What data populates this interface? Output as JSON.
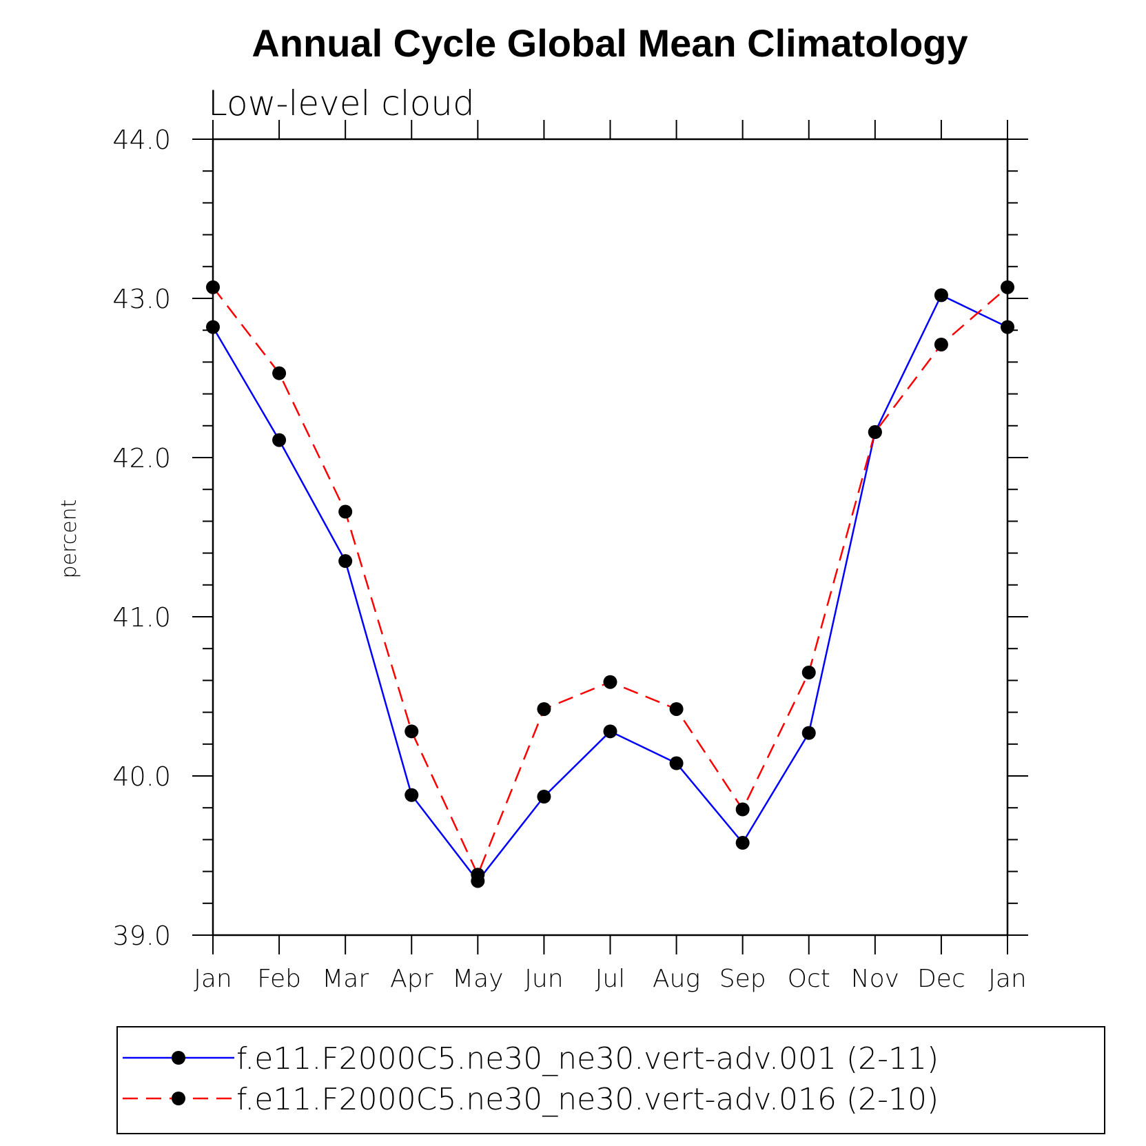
{
  "chart_data": {
    "type": "line",
    "title": "Annual Cycle Global Mean Climatology",
    "subtitle": "Low-level cloud",
    "ylabel": "percent",
    "xlabel": "",
    "ylim": [
      39.0,
      44.0
    ],
    "yticks": [
      "39.0",
      "40.0",
      "41.0",
      "42.0",
      "43.0",
      "44.0"
    ],
    "categories": [
      "Jan",
      "Feb",
      "Mar",
      "Apr",
      "May",
      "Jun",
      "Jul",
      "Aug",
      "Sep",
      "Oct",
      "Nov",
      "Dec",
      "Jan"
    ],
    "series": [
      {
        "name": "f.e11.F2000C5.ne30_ne30.vert-adv.001 (2-11)",
        "color": "#0000ff",
        "dash": "solid",
        "values": [
          42.82,
          42.11,
          41.35,
          39.88,
          39.34,
          39.87,
          40.28,
          40.08,
          39.58,
          40.27,
          42.16,
          43.02,
          42.82
        ]
      },
      {
        "name": "f.e11.F2000C5.ne30_ne30.vert-adv.016 (2-10)",
        "color": "#ff0000",
        "dash": "dashed",
        "values": [
          43.07,
          42.53,
          41.66,
          40.28,
          39.38,
          40.42,
          40.59,
          40.42,
          39.79,
          40.65,
          42.16,
          42.71,
          43.07
        ]
      }
    ],
    "marker_color": "#000000",
    "legend_position": "bottom"
  }
}
